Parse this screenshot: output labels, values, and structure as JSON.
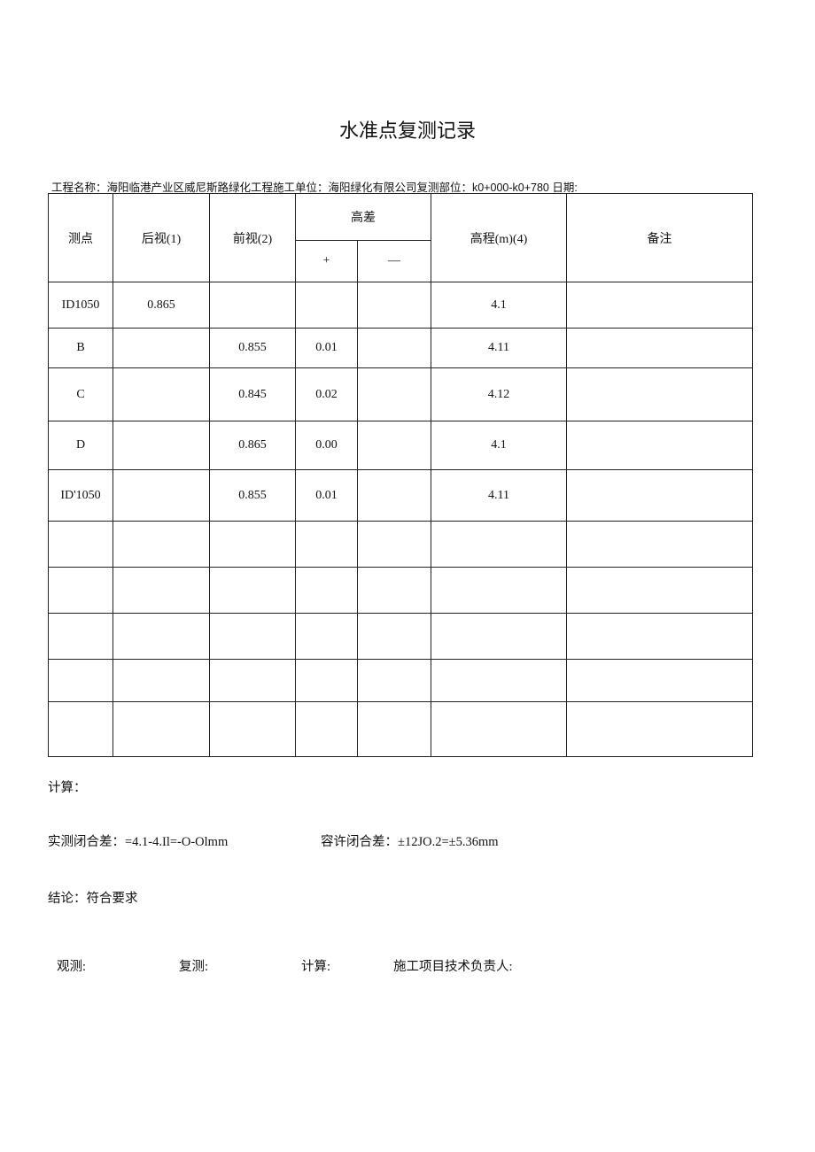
{
  "title": "水准点复测记录",
  "info": "工程名称：海阳临港产业区威尼斯路绿化工程施工单位：海阳绿化有限公司复测部位：k0+000-k0+780 日期:",
  "headers": {
    "point": "测点",
    "backsight": "后视(1)",
    "foresight": "前视(2)",
    "diff": "高差",
    "plus": "+",
    "minus": "—",
    "elevation": "高程(m)(4)",
    "remarks": "备注"
  },
  "rows": [
    {
      "point": "ID1050",
      "backsight": "0.865",
      "foresight": "",
      "plus": "",
      "minus": "",
      "elevation": "4.1",
      "remarks": ""
    },
    {
      "point": "B",
      "backsight": "",
      "foresight": "0.855",
      "plus": "0.01",
      "minus": "",
      "elevation": "4.11",
      "remarks": ""
    },
    {
      "point": "C",
      "backsight": "",
      "foresight": "0.845",
      "plus": "0.02",
      "minus": "",
      "elevation": "4.12",
      "remarks": ""
    },
    {
      "point": "D",
      "backsight": "",
      "foresight": "0.865",
      "plus": "0.00",
      "minus": "",
      "elevation": "4.1",
      "remarks": ""
    },
    {
      "point": "ID'1050",
      "backsight": "",
      "foresight": "0.855",
      "plus": "0.01",
      "minus": "",
      "elevation": "4.11",
      "remarks": ""
    },
    {
      "point": "",
      "backsight": "",
      "foresight": "",
      "plus": "",
      "minus": "",
      "elevation": "",
      "remarks": ""
    },
    {
      "point": "",
      "backsight": "",
      "foresight": "",
      "plus": "",
      "minus": "",
      "elevation": "",
      "remarks": ""
    },
    {
      "point": "",
      "backsight": "",
      "foresight": "",
      "plus": "",
      "minus": "",
      "elevation": "",
      "remarks": ""
    },
    {
      "point": "",
      "backsight": "",
      "foresight": "",
      "plus": "",
      "minus": "",
      "elevation": "",
      "remarks": ""
    },
    {
      "point": "",
      "backsight": "",
      "foresight": "",
      "plus": "",
      "minus": "",
      "elevation": "",
      "remarks": ""
    }
  ],
  "calc_label": "计算：",
  "measured_closure": "实测闭合差：=4.1-4.Il=-O-Olmm",
  "allowed_closure": "容许闭合差：±12JO.2=±5.36mm",
  "conclusion": "结论：符合要求",
  "signatures": {
    "observe": "观测:",
    "recheck": "复测:",
    "calc": "计算:",
    "tech_lead": "施工项目技术负责人:"
  }
}
